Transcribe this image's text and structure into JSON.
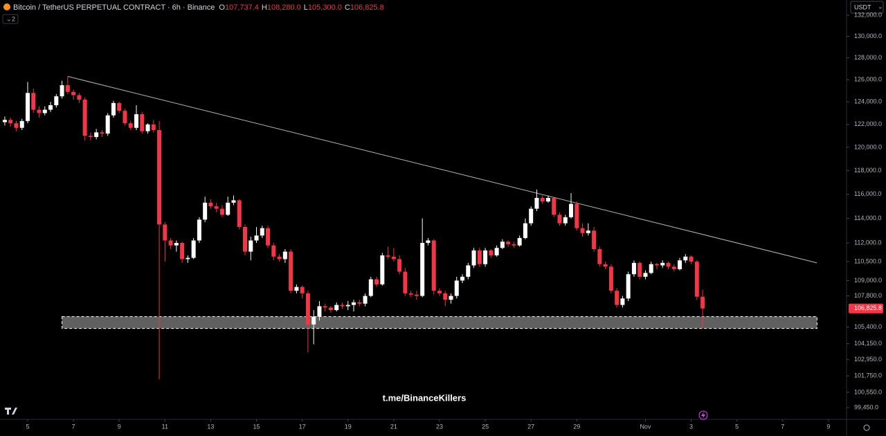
{
  "chart_data": {
    "type": "candlestick",
    "title": "Bitcoin / TetherUS PERPETUAL CONTRACT · 6h · Binance",
    "ohlc_header": [
      {
        "key": "O",
        "value": "107,737.4"
      },
      {
        "key": "H",
        "value": "108,280.0"
      },
      {
        "key": "L",
        "value": "105,300.0"
      },
      {
        "key": "C",
        "value": "106,825.8"
      }
    ],
    "currency": "USDT",
    "indicator_count": "2",
    "watermark": "t.me/BinanceKillers",
    "up_color": "#ffffff",
    "down_color": "#f23645",
    "log_scale": true,
    "grid": false,
    "xlim": [
      -1.21,
      35.76
    ],
    "ylim": [
      98660,
      133460
    ],
    "xticks": [
      {
        "value": 0,
        "label": "5"
      },
      {
        "value": 2,
        "label": "7"
      },
      {
        "value": 4,
        "label": "9"
      },
      {
        "value": 6,
        "label": "11"
      },
      {
        "value": 8,
        "label": "13"
      },
      {
        "value": 10,
        "label": "15"
      },
      {
        "value": 12,
        "label": "17"
      },
      {
        "value": 14,
        "label": "19"
      },
      {
        "value": 16,
        "label": "21"
      },
      {
        "value": 18,
        "label": "23"
      },
      {
        "value": 20,
        "label": "25"
      },
      {
        "value": 22,
        "label": "27"
      },
      {
        "value": 24,
        "label": "29"
      },
      {
        "value": 27,
        "label": "Nov"
      },
      {
        "value": 29,
        "label": "3"
      },
      {
        "value": 31,
        "label": "5"
      },
      {
        "value": 33,
        "label": "7"
      },
      {
        "value": 35,
        "label": "9"
      }
    ],
    "yticks": [
      {
        "value": 132000,
        "label": "132,000.0"
      },
      {
        "value": 130000,
        "label": "130,000.0"
      },
      {
        "value": 128000,
        "label": "128,000.0"
      },
      {
        "value": 126000,
        "label": "126,000.0"
      },
      {
        "value": 124000,
        "label": "124,000.0"
      },
      {
        "value": 122000,
        "label": "122,000.0"
      },
      {
        "value": 120000,
        "label": "120,000.0"
      },
      {
        "value": 118000,
        "label": "118,000.0"
      },
      {
        "value": 116000,
        "label": "116,000.0"
      },
      {
        "value": 114000,
        "label": "114,000.0"
      },
      {
        "value": 112000,
        "label": "112,000.0"
      },
      {
        "value": 110500,
        "label": "110,500.0"
      },
      {
        "value": 109000,
        "label": "109,000.0"
      },
      {
        "value": 107800,
        "label": "107,800.0"
      },
      {
        "value": 105400,
        "label": "105,400.0"
      },
      {
        "value": 104150,
        "label": "104,150.0"
      },
      {
        "value": 102950,
        "label": "102,950.0"
      },
      {
        "value": 101750,
        "label": "101,750.0"
      },
      {
        "value": 100550,
        "label": "100,550.0"
      },
      {
        "value": 99450,
        "label": "99,450.0"
      }
    ],
    "last_price": {
      "value": 106825.8,
      "label": "106,825.8"
    },
    "trendline": {
      "x": [
        1.75,
        34.5
      ],
      "y": [
        126300,
        110400
      ]
    },
    "zone": {
      "x": [
        1.5,
        34.5
      ],
      "y": [
        105300,
        106200
      ]
    },
    "candles": [
      [
        -1,
        122200,
        122700,
        121900,
        122400
      ],
      [
        -0.75,
        122400,
        122600,
        121800,
        122100
      ],
      [
        -0.5,
        122100,
        122300,
        121400,
        121700
      ],
      [
        -0.25,
        121700,
        122500,
        121500,
        122300
      ],
      [
        0,
        122300,
        125800,
        122100,
        124800
      ],
      [
        0.25,
        124800,
        125200,
        123000,
        123300
      ],
      [
        0.5,
        123300,
        123600,
        122600,
        123000
      ],
      [
        0.75,
        123000,
        123600,
        122800,
        123300
      ],
      [
        1,
        123300,
        124000,
        123100,
        123700
      ],
      [
        1.25,
        123700,
        124700,
        123500,
        124500
      ],
      [
        1.5,
        124500,
        125900,
        124300,
        125500
      ],
      [
        1.75,
        125500,
        126300,
        124700,
        124900
      ],
      [
        2,
        124900,
        125100,
        124200,
        124600
      ],
      [
        2.25,
        124600,
        124800,
        123900,
        124200
      ],
      [
        2.5,
        124200,
        124400,
        120600,
        121000
      ],
      [
        2.75,
        121000,
        121300,
        120600,
        120900
      ],
      [
        3,
        120900,
        121600,
        120700,
        121300
      ],
      [
        3.25,
        121300,
        121500,
        120900,
        121200
      ],
      [
        3.5,
        121200,
        123000,
        121000,
        122800
      ],
      [
        3.75,
        122800,
        124100,
        122600,
        123900
      ],
      [
        4,
        123900,
        124000,
        123000,
        123200
      ],
      [
        4.25,
        123200,
        123400,
        121900,
        122100
      ],
      [
        4.5,
        122100,
        122300,
        121500,
        121700
      ],
      [
        4.75,
        121700,
        123700,
        121500,
        122900
      ],
      [
        5,
        122900,
        123100,
        121200,
        121400
      ],
      [
        5.25,
        121400,
        122100,
        121200,
        122000
      ],
      [
        5.5,
        122000,
        122400,
        121300,
        121500
      ],
      [
        5.75,
        121500,
        122300,
        101500,
        113500
      ],
      [
        6,
        113500,
        113700,
        110500,
        112200
      ],
      [
        6.25,
        112200,
        112400,
        111500,
        111800
      ],
      [
        6.5,
        111800,
        112200,
        111300,
        112000
      ],
      [
        6.75,
        112000,
        112100,
        110400,
        110700
      ],
      [
        7,
        110700,
        111000,
        110400,
        110800
      ],
      [
        7.25,
        110800,
        112400,
        110700,
        112200
      ],
      [
        7.5,
        112200,
        114100,
        112000,
        113900
      ],
      [
        7.75,
        113900,
        115800,
        113700,
        115300
      ],
      [
        8,
        115300,
        115600,
        114800,
        115000
      ],
      [
        8.25,
        115000,
        115300,
        114500,
        114800
      ],
      [
        8.5,
        114800,
        115100,
        114100,
        114300
      ],
      [
        8.75,
        114300,
        115800,
        114200,
        115300
      ],
      [
        9,
        115300,
        115900,
        115100,
        115500
      ],
      [
        9.25,
        115500,
        115600,
        113100,
        113300
      ],
      [
        9.5,
        113300,
        113500,
        111000,
        111300
      ],
      [
        9.75,
        111300,
        112500,
        110600,
        112200
      ],
      [
        10,
        112200,
        113300,
        112000,
        112600
      ],
      [
        10.25,
        112600,
        113400,
        112400,
        113200
      ],
      [
        10.5,
        113200,
        113400,
        111600,
        111800
      ],
      [
        10.75,
        111800,
        112000,
        110600,
        110900
      ],
      [
        11,
        110900,
        111100,
        110500,
        110700
      ],
      [
        11.25,
        110700,
        111500,
        110400,
        111300
      ],
      [
        11.5,
        111300,
        111500,
        108000,
        108200
      ],
      [
        11.75,
        108200,
        108700,
        108000,
        108500
      ],
      [
        12,
        108500,
        108600,
        107600,
        108000
      ],
      [
        12.25,
        108000,
        108200,
        103500,
        105600
      ],
      [
        12.5,
        105600,
        106700,
        104100,
        106200
      ],
      [
        12.75,
        106200,
        107400,
        105900,
        107000
      ],
      [
        13,
        107000,
        107200,
        106600,
        106900
      ],
      [
        13.25,
        106900,
        107000,
        106500,
        106700
      ],
      [
        13.5,
        106700,
        107300,
        106600,
        107100
      ],
      [
        13.75,
        107100,
        107300,
        106800,
        107000
      ],
      [
        14,
        107000,
        107400,
        106700,
        107100
      ],
      [
        14.25,
        107100,
        107500,
        106600,
        107300
      ],
      [
        14.5,
        107300,
        107500,
        107000,
        107200
      ],
      [
        14.75,
        107200,
        108000,
        107000,
        107800
      ],
      [
        15,
        107800,
        109300,
        107700,
        109100
      ],
      [
        15.25,
        109100,
        109300,
        108500,
        108700
      ],
      [
        15.5,
        108700,
        111200,
        108600,
        111000
      ],
      [
        15.75,
        111000,
        111700,
        110700,
        110900
      ],
      [
        16,
        110900,
        111600,
        110500,
        110700
      ],
      [
        16.25,
        110700,
        111000,
        109500,
        109700
      ],
      [
        16.5,
        109700,
        110000,
        107800,
        108000
      ],
      [
        16.75,
        108000,
        108200,
        107700,
        107900
      ],
      [
        17,
        107900,
        108200,
        107500,
        107800
      ],
      [
        17.25,
        107800,
        114000,
        107700,
        112000
      ],
      [
        17.5,
        112000,
        112400,
        111800,
        112200
      ],
      [
        17.75,
        112200,
        112300,
        107900,
        108200
      ],
      [
        18,
        108200,
        108400,
        107800,
        108000
      ],
      [
        18.25,
        108000,
        108200,
        107000,
        107500
      ],
      [
        18.5,
        107500,
        108000,
        107200,
        107800
      ],
      [
        18.75,
        107800,
        109300,
        107600,
        109000
      ],
      [
        19,
        109000,
        109500,
        108800,
        109300
      ],
      [
        19.25,
        109300,
        110400,
        109100,
        110200
      ],
      [
        19.5,
        110200,
        111600,
        110000,
        111400
      ],
      [
        19.75,
        111400,
        111600,
        110100,
        110300
      ],
      [
        20,
        110300,
        111600,
        110100,
        111400
      ],
      [
        20.25,
        111400,
        111500,
        110800,
        111000
      ],
      [
        20.5,
        111000,
        111800,
        110900,
        111600
      ],
      [
        20.75,
        111600,
        112300,
        111500,
        112100
      ],
      [
        21,
        112100,
        112200,
        111700,
        111900
      ],
      [
        21.25,
        111900,
        112100,
        111600,
        111800
      ],
      [
        21.5,
        111800,
        112600,
        111700,
        112400
      ],
      [
        21.75,
        112400,
        114000,
        112300,
        113600
      ],
      [
        22,
        113600,
        115000,
        113400,
        114800
      ],
      [
        22.25,
        114800,
        116400,
        114600,
        115700
      ],
      [
        22.5,
        115700,
        115900,
        115200,
        115400
      ],
      [
        22.75,
        115400,
        115900,
        115300,
        115700
      ],
      [
        23,
        115700,
        115800,
        114100,
        114300
      ],
      [
        23.25,
        114300,
        114500,
        113400,
        113600
      ],
      [
        23.5,
        113600,
        114300,
        113400,
        114100
      ],
      [
        23.75,
        114100,
        116100,
        114000,
        115200
      ],
      [
        24,
        115200,
        115400,
        113000,
        113200
      ],
      [
        24.25,
        113200,
        113600,
        112500,
        112800
      ],
      [
        24.5,
        112800,
        113600,
        112600,
        113000
      ],
      [
        24.75,
        113000,
        113300,
        111300,
        111500
      ],
      [
        25,
        111500,
        111700,
        110100,
        110300
      ],
      [
        25.25,
        110300,
        110500,
        109900,
        110100
      ],
      [
        25.5,
        110100,
        110300,
        108000,
        108200
      ],
      [
        25.75,
        108200,
        108400,
        106900,
        107100
      ],
      [
        26,
        107100,
        107800,
        106900,
        107600
      ],
      [
        26.25,
        107600,
        109700,
        107400,
        109500
      ],
      [
        26.5,
        109500,
        110600,
        109300,
        110400
      ],
      [
        26.75,
        110400,
        110500,
        109100,
        109300
      ],
      [
        27,
        109300,
        109800,
        109100,
        109600
      ],
      [
        27.25,
        109600,
        110500,
        109500,
        110300
      ],
      [
        27.5,
        110300,
        110400,
        109900,
        110200
      ],
      [
        27.75,
        110200,
        110600,
        110000,
        110400
      ],
      [
        28,
        110400,
        110500,
        109900,
        110100
      ],
      [
        28.25,
        110100,
        110300,
        109700,
        109900
      ],
      [
        28.5,
        109900,
        110800,
        109800,
        110600
      ],
      [
        28.75,
        110600,
        111100,
        110400,
        110900
      ],
      [
        29,
        110900,
        111000,
        110300,
        110500
      ],
      [
        29.25,
        110500,
        110600,
        107500,
        107737.4
      ],
      [
        29.5,
        107737.4,
        108280,
        105300,
        106825.8
      ]
    ]
  }
}
